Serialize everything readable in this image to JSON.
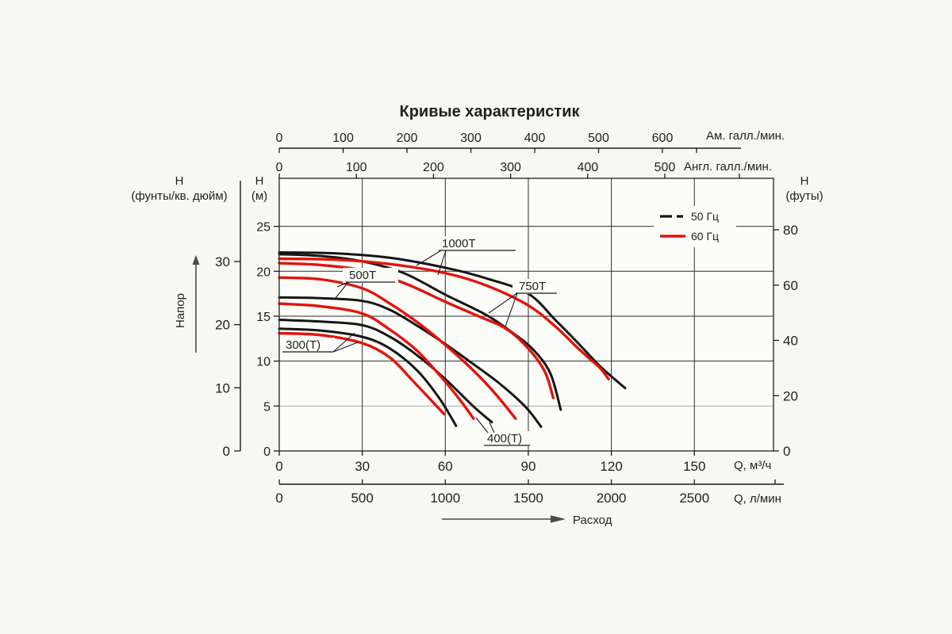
{
  "title": "Кривые характеристик",
  "colors": {
    "hz50": "#151515",
    "hz60": "#e3140c",
    "axis": "#1a1a1a",
    "grid": "#2e2e2e",
    "grid_light": "#a8a8a8",
    "text": "#1f1f1f",
    "page_bg": "#f7f7f4",
    "plot_bg": "#fcfcf9"
  },
  "legend": {
    "items": [
      {
        "label": "50 Гц",
        "freq": "50",
        "style": "dashed-black"
      },
      {
        "label": "60 Гц",
        "freq": "60",
        "style": "solid-red"
      }
    ]
  },
  "axes": {
    "us_gpm": {
      "label": "Ам. галл./мин.",
      "ticks": [
        0,
        100,
        200,
        300,
        400,
        500,
        600
      ]
    },
    "imp_gpm": {
      "label": "Англ. галл./мин.",
      "ticks": [
        0,
        100,
        200,
        300,
        400,
        500
      ]
    },
    "m3h": {
      "label": "Q, м³/ч",
      "ticks": [
        0,
        30,
        60,
        90,
        120,
        150
      ]
    },
    "l_min": {
      "label": "Q, л/мин",
      "ticks": [
        0,
        500,
        1000,
        1500,
        2000,
        2500
      ]
    },
    "head_m": {
      "title": "Н",
      "unit": "(м)",
      "ticks": [
        0,
        5,
        10,
        15,
        20,
        25
      ]
    },
    "head_ft": {
      "title": "Н",
      "unit": "(футы)",
      "ticks": [
        0,
        20,
        40,
        60,
        80
      ]
    },
    "head_psi": {
      "title": "Н",
      "unit": "(фунты/кв. дюйм)",
      "ticks": [
        0,
        10,
        20,
        30
      ]
    },
    "flow_label": "Расход",
    "head_label": "Напор"
  },
  "curve_labels": [
    {
      "text": "1000Т"
    },
    {
      "text": "750Т"
    },
    {
      "text": "500Т"
    },
    {
      "text": "400(Т)"
    },
    {
      "text": "300(Т)"
    }
  ],
  "chart_data": {
    "type": "line",
    "title": "Кривые характеристик",
    "xlabel": "Q, м³/ч",
    "ylabel": "Н (м)",
    "x_range_m3h": [
      0,
      178
    ],
    "y_range_m": [
      0,
      30.3
    ],
    "grid": "on",
    "legend_position": "top-right",
    "secondary_x_axes": [
      "Ам. галл./мин.",
      "Англ. галл./мин.",
      "Q, л/мин"
    ],
    "secondary_y_axes": [
      "Н (футы)",
      "Н (фунты/кв. дюйм)"
    ],
    "series": [
      {
        "model": "1000Т",
        "freq_hz": 50,
        "color_key": "hz50",
        "points": [
          [
            0,
            22.1
          ],
          [
            20,
            22.0
          ],
          [
            40,
            21.5
          ],
          [
            60,
            20.4
          ],
          [
            75,
            19.2
          ],
          [
            90,
            17.5
          ],
          [
            100,
            14.5
          ],
          [
            108,
            12.0
          ],
          [
            115,
            9.7
          ],
          [
            120,
            8.3
          ],
          [
            125,
            7.0
          ]
        ]
      },
      {
        "model": "1000Т",
        "freq_hz": 60,
        "color_key": "hz60",
        "points": [
          [
            0,
            21.4
          ],
          [
            20,
            21.3
          ],
          [
            40,
            20.8
          ],
          [
            60,
            19.8
          ],
          [
            75,
            18.4
          ],
          [
            90,
            16.2
          ],
          [
            100,
            13.8
          ],
          [
            107,
            11.7
          ],
          [
            112,
            10.3
          ],
          [
            116,
            9.2
          ],
          [
            119,
            8.0
          ]
        ]
      },
      {
        "model": "750Т",
        "freq_hz": 50,
        "color_key": "hz50",
        "points": [
          [
            0,
            21.9
          ],
          [
            15,
            21.7
          ],
          [
            30,
            21.1
          ],
          [
            45,
            19.8
          ],
          [
            60,
            17.4
          ],
          [
            75,
            15.1
          ],
          [
            85,
            13.0
          ],
          [
            92,
            11.2
          ],
          [
            98,
            8.6
          ],
          [
            101.7,
            4.6
          ]
        ]
      },
      {
        "model": "750Т",
        "freq_hz": 60,
        "color_key": "hz60",
        "points": [
          [
            0,
            20.9
          ],
          [
            15,
            20.7
          ],
          [
            30,
            20.1
          ],
          [
            45,
            18.7
          ],
          [
            60,
            16.6
          ],
          [
            72,
            15.0
          ],
          [
            82,
            13.6
          ],
          [
            90,
            11.4
          ],
          [
            96,
            8.8
          ],
          [
            99,
            5.9
          ]
        ]
      },
      {
        "model": "500Т",
        "freq_hz": 50,
        "color_key": "hz50",
        "points": [
          [
            0,
            17.1
          ],
          [
            15,
            17.0
          ],
          [
            30,
            16.7
          ],
          [
            40,
            15.7
          ],
          [
            50,
            13.9
          ],
          [
            60,
            11.9
          ],
          [
            70,
            9.7
          ],
          [
            80,
            7.4
          ],
          [
            89,
            4.9
          ],
          [
            94.6,
            2.7
          ]
        ]
      },
      {
        "model": "500Т",
        "freq_hz": 60,
        "color_key": "hz60",
        "points": [
          [
            0,
            19.3
          ],
          [
            15,
            19.1
          ],
          [
            30,
            18.1
          ],
          [
            40,
            16.4
          ],
          [
            50,
            14.3
          ],
          [
            60,
            11.8
          ],
          [
            70,
            9.0
          ],
          [
            78,
            6.4
          ],
          [
            85.4,
            3.6
          ]
        ]
      },
      {
        "model": "400Т",
        "freq_hz": 50,
        "color_key": "hz50",
        "points": [
          [
            0,
            14.6
          ],
          [
            15,
            14.4
          ],
          [
            30,
            14.0
          ],
          [
            40,
            12.7
          ],
          [
            50,
            10.6
          ],
          [
            60,
            8.0
          ],
          [
            70,
            5.0
          ],
          [
            76.8,
            3.2
          ]
        ]
      },
      {
        "model": "400Т",
        "freq_hz": 60,
        "color_key": "hz60",
        "points": [
          [
            0,
            16.4
          ],
          [
            15,
            16.1
          ],
          [
            30,
            15.3
          ],
          [
            40,
            13.5
          ],
          [
            50,
            11.1
          ],
          [
            60,
            7.7
          ],
          [
            66,
            5.4
          ],
          [
            70.2,
            3.6
          ]
        ]
      },
      {
        "model": "300Т",
        "freq_hz": 50,
        "color_key": "hz50",
        "points": [
          [
            0,
            13.6
          ],
          [
            15,
            13.4
          ],
          [
            30,
            12.7
          ],
          [
            40,
            11.4
          ],
          [
            50,
            8.9
          ],
          [
            58,
            5.8
          ],
          [
            63.9,
            2.8
          ]
        ]
      },
      {
        "model": "300Т",
        "freq_hz": 60,
        "color_key": "hz60",
        "points": [
          [
            0,
            13.1
          ],
          [
            15,
            12.9
          ],
          [
            30,
            12.0
          ],
          [
            40,
            10.4
          ],
          [
            48,
            7.9
          ],
          [
            55,
            5.6
          ],
          [
            59.6,
            4.1
          ]
        ]
      }
    ]
  }
}
